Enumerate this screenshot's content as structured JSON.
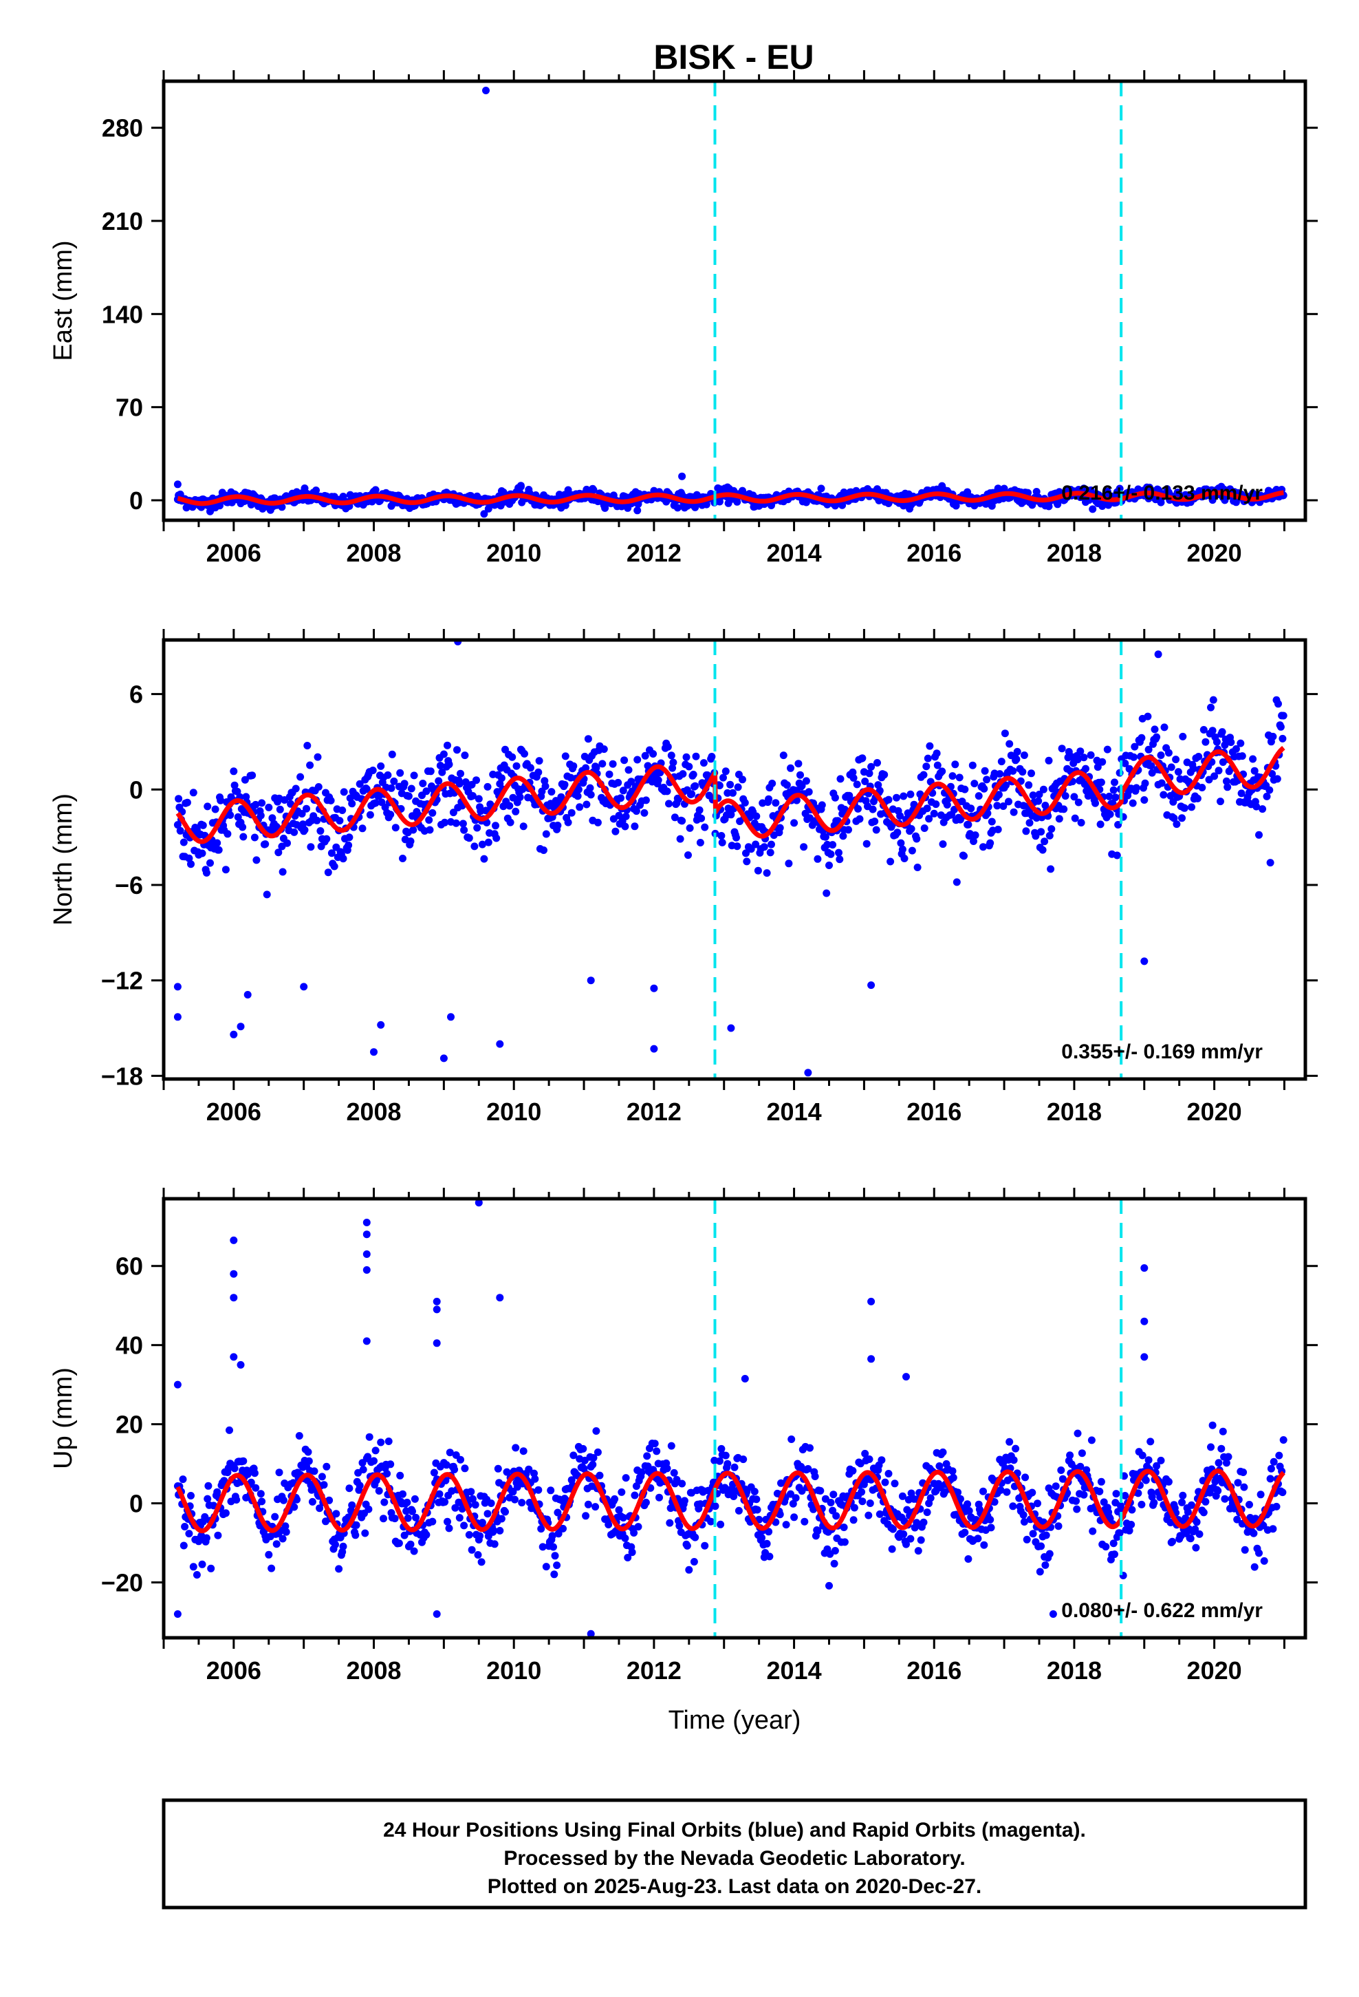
{
  "title": "BISK - EU",
  "colors": {
    "final_orbit_points": "#0000ff",
    "model_fit": "#ff0000",
    "offset_lines": "#00e5ee",
    "frame": "#000000"
  },
  "xlabel": "Time (year)",
  "xlim": [
    2005.0,
    2021.3
  ],
  "xticks": [
    "2006",
    "2008",
    "2010",
    "2012",
    "2014",
    "2016",
    "2018",
    "2020"
  ],
  "chart_data": [
    {
      "type": "scatter",
      "component": "east",
      "ylabel": "East (mm)",
      "ylim": [
        -15,
        315
      ],
      "yticks": [
        "0",
        "70",
        "140",
        "210",
        "280"
      ],
      "rate": "0.216+/- 0.133 mm/yr",
      "offsets": [
        2012.87,
        2018.67
      ],
      "fit": {
        "trend_per_year": 0.216,
        "seasonal_amplitude": 2.5,
        "level_2005": 0,
        "steps": [
          0,
          0
        ]
      },
      "noise": 2.5,
      "outliers": [
        {
          "x": 2009.6,
          "y": 308
        },
        {
          "x": 2012.4,
          "y": 18
        },
        {
          "x": 2005.2,
          "y": 12
        },
        {
          "x": 2010.1,
          "y": 11
        }
      ],
      "series": [
        {
          "values": "scatter"
        },
        {
          "values": "fit"
        }
      ]
    },
    {
      "type": "scatter",
      "component": "north",
      "ylabel": "North (mm)",
      "ylim": [
        -18.2,
        9.4
      ],
      "yticks": [
        "6",
        "0",
        "−6",
        "−12",
        "−18"
      ],
      "rate": "0.355+/- 0.169 mm/yr",
      "offsets": [
        2012.87,
        2018.67
      ],
      "fit": {
        "trend_per_year": 0.355,
        "seasonal_amplitude": 1.2,
        "level_2005": -2.2,
        "steps": [
          -2.5,
          0.6
        ]
      },
      "noise": 1.3,
      "outliers": [
        {
          "x": 2005.2,
          "y": -14.3
        },
        {
          "x": 2005.2,
          "y": -12.4
        },
        {
          "x": 2006.0,
          "y": -15.4
        },
        {
          "x": 2006.1,
          "y": -14.9
        },
        {
          "x": 2006.2,
          "y": -12.9
        },
        {
          "x": 2007.0,
          "y": -12.4
        },
        {
          "x": 2008.0,
          "y": -16.5
        },
        {
          "x": 2008.1,
          "y": -14.8
        },
        {
          "x": 2009.0,
          "y": -16.9
        },
        {
          "x": 2009.1,
          "y": -14.3
        },
        {
          "x": 2009.2,
          "y": 9.3
        },
        {
          "x": 2009.8,
          "y": -16.0
        },
        {
          "x": 2011.1,
          "y": -12.0
        },
        {
          "x": 2012.0,
          "y": -16.3
        },
        {
          "x": 2012.0,
          "y": -12.5
        },
        {
          "x": 2013.1,
          "y": -15.0
        },
        {
          "x": 2014.2,
          "y": -17.8
        },
        {
          "x": 2015.1,
          "y": -12.3
        },
        {
          "x": 2019.0,
          "y": -10.8
        },
        {
          "x": 2019.2,
          "y": 8.5
        },
        {
          "x": 2020.8,
          "y": -4.6
        }
      ],
      "series": [
        {
          "values": "scatter"
        },
        {
          "values": "fit"
        }
      ]
    },
    {
      "type": "scatter",
      "component": "up",
      "ylabel": "Up (mm)",
      "ylim": [
        -34,
        77
      ],
      "yticks": [
        "60",
        "40",
        "20",
        "0",
        "−20"
      ],
      "rate": "0.080+/- 0.622 mm/yr",
      "offsets": [
        2012.87,
        2018.67
      ],
      "fit": {
        "trend_per_year": 0.08,
        "seasonal_amplitude": 7.0,
        "level_2005": 0,
        "steps": [
          0,
          0
        ]
      },
      "noise": 4.5,
      "outliers": [
        {
          "x": 2006.0,
          "y": 66.5
        },
        {
          "x": 2006.0,
          "y": 58
        },
        {
          "x": 2006.0,
          "y": 52
        },
        {
          "x": 2006.0,
          "y": 37
        },
        {
          "x": 2006.1,
          "y": 35
        },
        {
          "x": 2007.9,
          "y": 71
        },
        {
          "x": 2007.9,
          "y": 68
        },
        {
          "x": 2007.9,
          "y": 63
        },
        {
          "x": 2007.9,
          "y": 59
        },
        {
          "x": 2007.9,
          "y": 41
        },
        {
          "x": 2008.9,
          "y": 51
        },
        {
          "x": 2008.9,
          "y": 49
        },
        {
          "x": 2008.9,
          "y": 40.5
        },
        {
          "x": 2009.5,
          "y": 76
        },
        {
          "x": 2009.8,
          "y": 52
        },
        {
          "x": 2015.1,
          "y": 51
        },
        {
          "x": 2015.1,
          "y": 36.5
        },
        {
          "x": 2015.6,
          "y": 32
        },
        {
          "x": 2019.0,
          "y": 59.5
        },
        {
          "x": 2019.0,
          "y": 46
        },
        {
          "x": 2019.0,
          "y": 37
        },
        {
          "x": 2013.3,
          "y": 31.5
        },
        {
          "x": 2005.2,
          "y": 30
        },
        {
          "x": 2005.2,
          "y": -28
        },
        {
          "x": 2011.1,
          "y": -33
        },
        {
          "x": 2008.9,
          "y": -28
        },
        {
          "x": 2017.7,
          "y": -28
        }
      ],
      "series": [
        {
          "values": "scatter"
        },
        {
          "values": "fit"
        }
      ]
    }
  ],
  "footer": {
    "line1": "24 Hour Positions Using Final Orbits (blue) and Rapid Orbits (magenta).",
    "line2": "Processed by the Nevada Geodetic Laboratory.",
    "line3": "Plotted on 2025-Aug-23. Last data on 2020-Dec-27."
  }
}
